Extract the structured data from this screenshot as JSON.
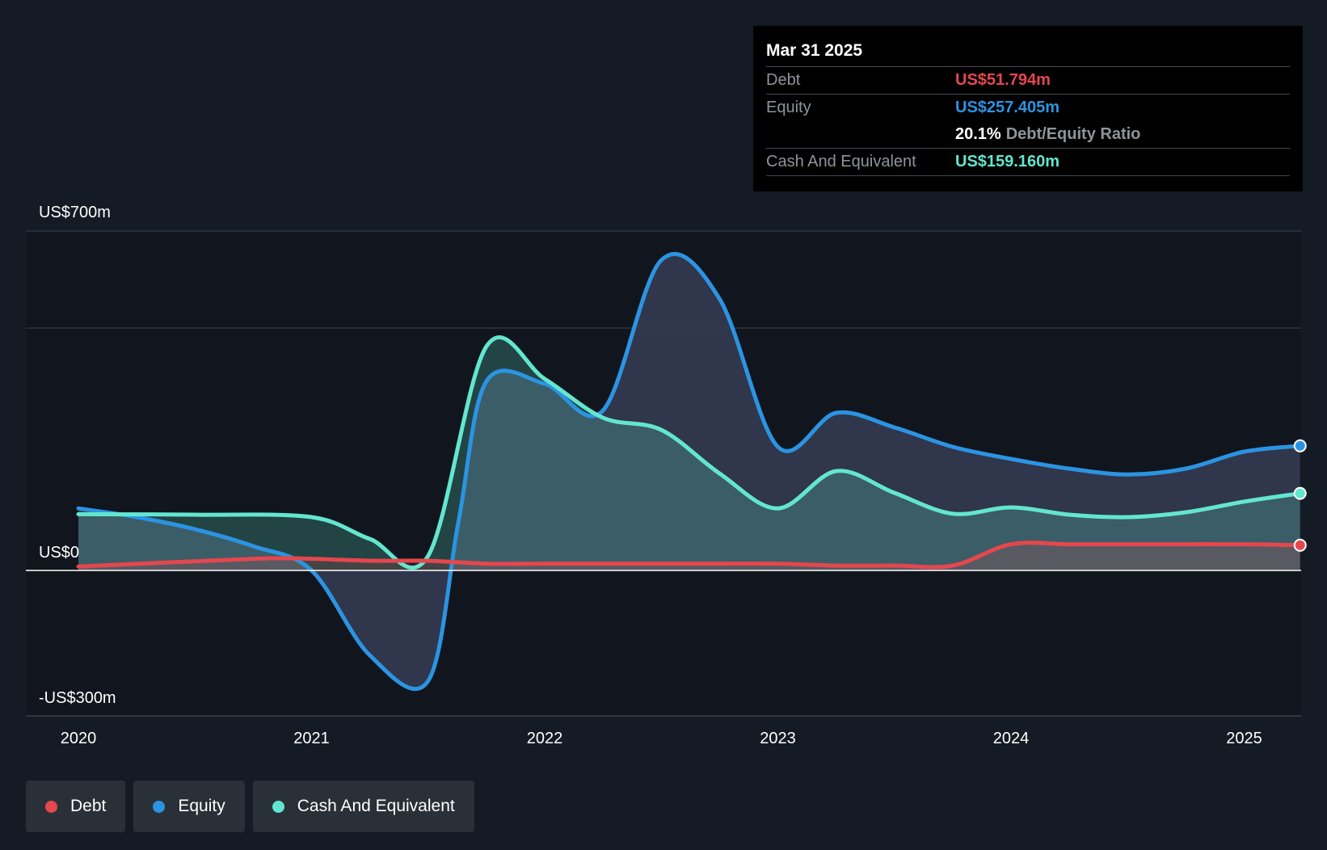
{
  "tooltip": {
    "date": "Mar 31 2025",
    "debt_label": "Debt",
    "debt_value": "US$51.794m",
    "equity_label": "Equity",
    "equity_value": "US$257.405m",
    "ratio_value": "20.1%",
    "ratio_label": "Debt/Equity Ratio",
    "cash_label": "Cash And Equivalent",
    "cash_value": "US$159.160m"
  },
  "legend": [
    {
      "label": "Debt",
      "color": "#e5474e"
    },
    {
      "label": "Equity",
      "color": "#2b94e2"
    },
    {
      "label": "Cash And Equivalent",
      "color": "#63e6cf"
    }
  ],
  "colors": {
    "debt": "#e5474e",
    "equity": "#2b94e2",
    "cash": "#63e6cf",
    "background": "#151b24"
  },
  "chart_data": {
    "type": "area",
    "title": "",
    "ylim": [
      -300,
      700
    ],
    "y_tick_labels": [
      {
        "value": 700,
        "label": "US$700m"
      },
      {
        "value": 0,
        "label": "US$0"
      },
      {
        "value": -300,
        "label": "-US$300m"
      }
    ],
    "x_ticks": [
      2020,
      2021,
      2022,
      2023,
      2024,
      2025
    ],
    "x_tick_labels": [
      "2020",
      "2021",
      "2022",
      "2023",
      "2024",
      "2025"
    ],
    "xlim": [
      2019.78,
      2025.24
    ],
    "series": [
      {
        "name": "Debt",
        "x": [
          2020.0,
          2020.75,
          2021.0,
          2021.25,
          2021.5,
          2021.75,
          2022.0,
          2022.5,
          2022.75,
          2023.0,
          2023.25,
          2023.5,
          2023.75,
          2024.0,
          2024.25,
          2024.5,
          2024.75,
          2025.0,
          2025.24
        ],
        "y": [
          8,
          24,
          24,
          20,
          20,
          14,
          14,
          14,
          14,
          14,
          10,
          10,
          10,
          54,
          54,
          54,
          54,
          54,
          52
        ]
      },
      {
        "name": "Equity",
        "x": [
          2020.0,
          2020.25,
          2020.5,
          2020.75,
          2021.0,
          2021.25,
          2021.5,
          2021.63,
          2021.75,
          2022.0,
          2022.25,
          2022.5,
          2022.75,
          2023.0,
          2023.25,
          2023.5,
          2023.75,
          2024.0,
          2024.25,
          2024.5,
          2024.75,
          2025.0,
          2025.24
        ],
        "y": [
          128,
          110,
          85,
          50,
          0,
          -175,
          -228,
          100,
          390,
          385,
          330,
          640,
          560,
          255,
          325,
          295,
          255,
          230,
          210,
          198,
          210,
          245,
          257
        ]
      },
      {
        "name": "Cash And Equivalent",
        "x": [
          2020.0,
          2020.5,
          2021.0,
          2021.25,
          2021.5,
          2021.75,
          2022.0,
          2022.25,
          2022.5,
          2022.75,
          2023.0,
          2023.25,
          2023.5,
          2023.75,
          2024.0,
          2024.25,
          2024.5,
          2024.75,
          2025.0,
          2025.24
        ],
        "y": [
          116,
          115,
          110,
          65,
          30,
          462,
          395,
          315,
          290,
          200,
          128,
          205,
          160,
          117,
          130,
          115,
          110,
          120,
          142,
          159
        ]
      }
    ]
  }
}
